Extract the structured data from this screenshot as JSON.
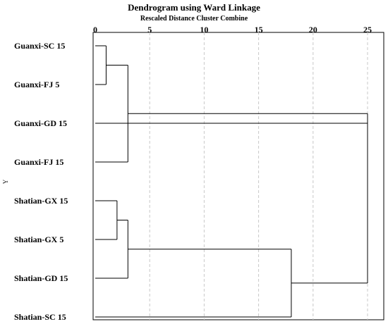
{
  "chart_data": {
    "type": "dendrogram",
    "title": "Dendrogram using Ward Linkage",
    "subtitle": "Rescaled Distance Cluster Combine",
    "ylabel": "Y",
    "xlim": [
      0,
      25
    ],
    "xticks": [
      0,
      5,
      10,
      15,
      20,
      25
    ],
    "grid": true,
    "leaves": [
      "Guanxi-SC 15",
      "Guanxi-FJ 5",
      "Guanxi-GD 15",
      "Guanxi-FJ 15",
      "Shatian-GX 15",
      "Shatian-GX 5",
      "Shatian-GD 15",
      "Shatian-SC 15"
    ],
    "merges": [
      {
        "a": "leaf:0",
        "b": "leaf:1",
        "distance": 1
      },
      {
        "a": "node:0",
        "b": "leaf:3",
        "distance": 3
      },
      {
        "a": "leaf:4",
        "b": "leaf:5",
        "distance": 2
      },
      {
        "a": "node:2",
        "b": "leaf:6",
        "distance": 3
      },
      {
        "a": "node:3",
        "b": "leaf:7",
        "distance": 18
      },
      {
        "a": "node:1",
        "b": "node:4",
        "distance": 25
      }
    ],
    "extra_lines": [
      {
        "from_leaf": 2,
        "to_distance": 25
      }
    ]
  }
}
